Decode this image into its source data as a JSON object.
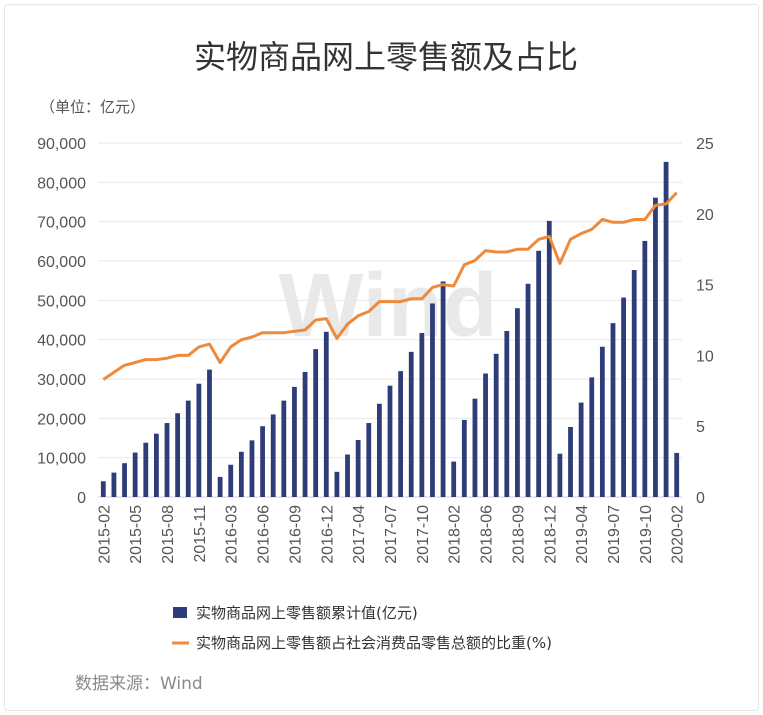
{
  "chart_data": {
    "type": "bar+line",
    "title": "实物商品网上零售额及占比",
    "unit_label": "（单位：亿元）",
    "watermark": "Wind",
    "source": "数据来源：Wind",
    "left_axis": {
      "ylim": [
        0,
        90000
      ],
      "ticks": [
        "0",
        "10,000",
        "20,000",
        "30,000",
        "40,000",
        "50,000",
        "60,000",
        "70,000",
        "80,000",
        "90,000"
      ]
    },
    "right_axis": {
      "ylim": [
        0,
        25
      ],
      "ticks": [
        "0",
        "5",
        "10",
        "15",
        "20",
        "25"
      ]
    },
    "grid": true,
    "legend_position": "bottom",
    "x_tick_labels": [
      "2015-02",
      "2015-05",
      "2015-08",
      "2015-11",
      "2016-03",
      "2016-06",
      "2016-09",
      "2016-12",
      "2017-04",
      "2017-07",
      "2017-10",
      "2018-02",
      "2018-06",
      "2018-09",
      "2018-12",
      "2019-04",
      "2019-07",
      "2019-10",
      "2020-02"
    ],
    "x_tick_indices": [
      0,
      3,
      6,
      9,
      12,
      15,
      18,
      21,
      24,
      27,
      30,
      33,
      36,
      39,
      42,
      45,
      48,
      51,
      54
    ],
    "colors": {
      "bar": "#2e3d78",
      "line": "#ee8a3c",
      "grid": "#e8e8e8"
    },
    "series": [
      {
        "name": "实物商品网上零售额累计值(亿元)",
        "type": "bar",
        "axis": "left",
        "values": [
          4000,
          6200,
          8600,
          11300,
          13800,
          16100,
          18800,
          21300,
          24500,
          28800,
          32400,
          5100,
          8200,
          11500,
          14400,
          18000,
          21000,
          24500,
          28000,
          31800,
          37600,
          42000,
          6400,
          10800,
          14500,
          18800,
          23700,
          28300,
          32000,
          36900,
          41700,
          49200,
          54800,
          9000,
          19600,
          25000,
          31400,
          36400,
          42200,
          48000,
          54200,
          62600,
          70200,
          11000,
          17800,
          24000,
          30400,
          38200,
          44200,
          50700,
          57700,
          65100,
          76100,
          85200,
          11200
        ]
      },
      {
        "name": "实物商品网上零售额占社会消费品零售总额的比重(%)",
        "type": "line",
        "axis": "right",
        "values": [
          8.3,
          8.8,
          9.3,
          9.5,
          9.7,
          9.7,
          9.8,
          10.0,
          10.0,
          10.6,
          10.8,
          9.5,
          10.6,
          11.1,
          11.3,
          11.6,
          11.6,
          11.6,
          11.7,
          11.8,
          12.5,
          12.6,
          11.2,
          12.2,
          12.8,
          13.1,
          13.8,
          13.8,
          13.8,
          14.0,
          14.0,
          14.8,
          15.0,
          14.9,
          16.4,
          16.7,
          17.4,
          17.3,
          17.3,
          17.5,
          17.5,
          18.2,
          18.4,
          16.5,
          18.2,
          18.6,
          18.9,
          19.6,
          19.4,
          19.4,
          19.6,
          19.6,
          20.6,
          20.7,
          21.5
        ]
      }
    ]
  }
}
